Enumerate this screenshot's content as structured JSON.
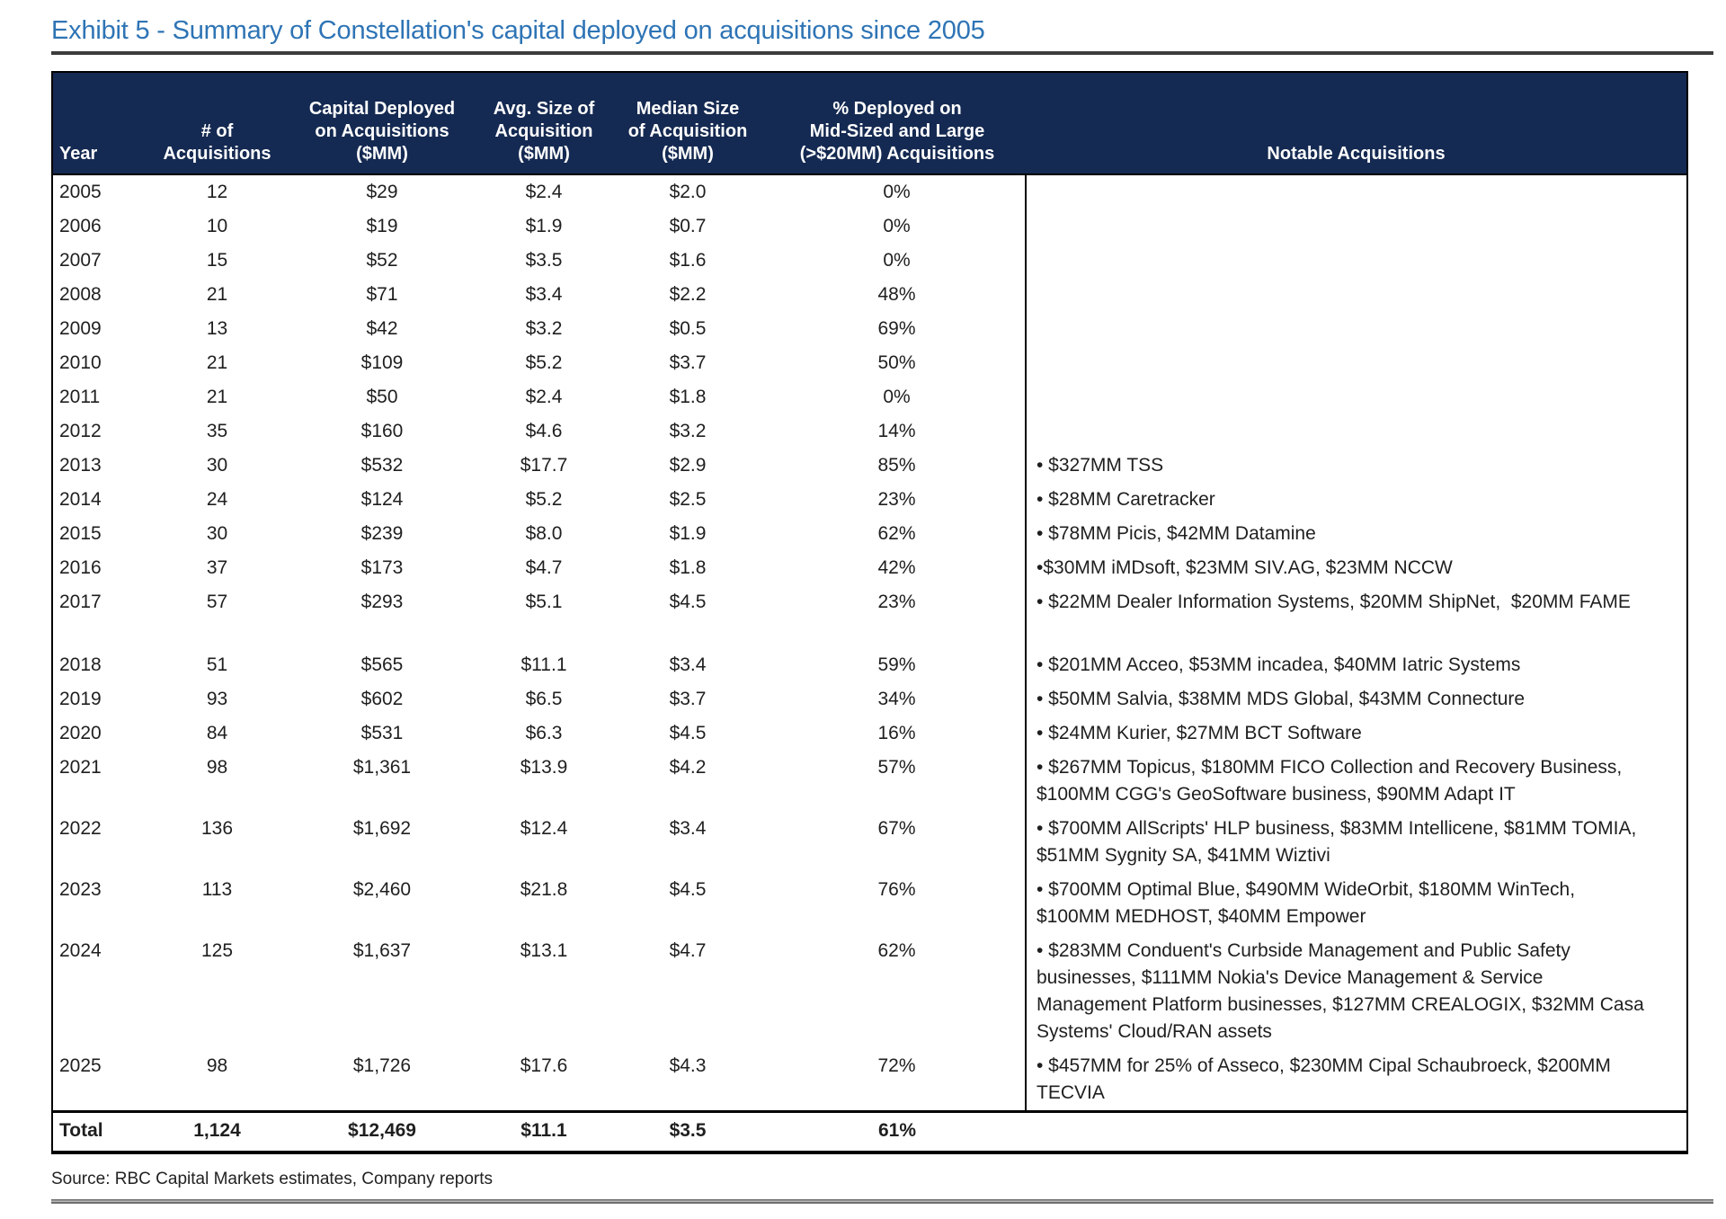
{
  "title": "Exhibit 5 - Summary of Constellation's capital deployed on acquisitions since 2005",
  "source": "Source: RBC Capital Markets estimates, Company reports",
  "colors": {
    "header_bg": "#152a52",
    "title_blue": "#2E74B5"
  },
  "table": {
    "columns": [
      "Year",
      "# of\nAcquisitions",
      "Capital Deployed\non Acquisitions\n($MM)",
      "Avg. Size of\nAcquisition\n($MM)",
      "Median Size\nof Acquisition\n($MM)",
      "% Deployed on\nMid-Sized and Large\n(>$20MM) Acquisitions",
      "Notable Acquisitions"
    ],
    "rows": [
      {
        "year": "2005",
        "num": "12",
        "capital": "$29",
        "avg": "$2.4",
        "median": "$2.0",
        "pct": "0%",
        "notable": ""
      },
      {
        "year": "2006",
        "num": "10",
        "capital": "$19",
        "avg": "$1.9",
        "median": "$0.7",
        "pct": "0%",
        "notable": ""
      },
      {
        "year": "2007",
        "num": "15",
        "capital": "$52",
        "avg": "$3.5",
        "median": "$1.6",
        "pct": "0%",
        "notable": ""
      },
      {
        "year": "2008",
        "num": "21",
        "capital": "$71",
        "avg": "$3.4",
        "median": "$2.2",
        "pct": "48%",
        "notable": ""
      },
      {
        "year": "2009",
        "num": "13",
        "capital": "$42",
        "avg": "$3.2",
        "median": "$0.5",
        "pct": "69%",
        "notable": ""
      },
      {
        "year": "2010",
        "num": "21",
        "capital": "$109",
        "avg": "$5.2",
        "median": "$3.7",
        "pct": "50%",
        "notable": ""
      },
      {
        "year": "2011",
        "num": "21",
        "capital": "$50",
        "avg": "$2.4",
        "median": "$1.8",
        "pct": "0%",
        "notable": ""
      },
      {
        "year": "2012",
        "num": "35",
        "capital": "$160",
        "avg": "$4.6",
        "median": "$3.2",
        "pct": "14%",
        "notable": ""
      },
      {
        "year": "2013",
        "num": "30",
        "capital": "$532",
        "avg": "$17.7",
        "median": "$2.9",
        "pct": "85%",
        "notable": "• $327MM TSS"
      },
      {
        "year": "2014",
        "num": "24",
        "capital": "$124",
        "avg": "$5.2",
        "median": "$2.5",
        "pct": "23%",
        "notable": "• $28MM Caretracker"
      },
      {
        "year": "2015",
        "num": "30",
        "capital": "$239",
        "avg": "$8.0",
        "median": "$1.9",
        "pct": "62%",
        "notable": "• $78MM Picis, $42MM Datamine"
      },
      {
        "year": "2016",
        "num": "37",
        "capital": "$173",
        "avg": "$4.7",
        "median": "$1.8",
        "pct": "42%",
        "notable": "•$30MM iMDsoft, $23MM SIV.AG, $23MM NCCW"
      },
      {
        "year": "2017",
        "num": "57",
        "capital": "$293",
        "avg": "$5.1",
        "median": "$4.5",
        "pct": "23%",
        "notable": "• $22MM Dealer Information Systems, $20MM ShipNet,  $20MM FAME",
        "spacer": true
      },
      {
        "year": "2018",
        "num": "51",
        "capital": "$565",
        "avg": "$11.1",
        "median": "$3.4",
        "pct": "59%",
        "notable": "• $201MM Acceo, $53MM incadea, $40MM Iatric Systems"
      },
      {
        "year": "2019",
        "num": "93",
        "capital": "$602",
        "avg": "$6.5",
        "median": "$3.7",
        "pct": "34%",
        "notable": "• $50MM Salvia, $38MM MDS Global, $43MM Connecture"
      },
      {
        "year": "2020",
        "num": "84",
        "capital": "$531",
        "avg": "$6.3",
        "median": "$4.5",
        "pct": "16%",
        "notable": "• $24MM Kurier, $27MM BCT Software"
      },
      {
        "year": "2021",
        "num": "98",
        "capital": "$1,361",
        "avg": "$13.9",
        "median": "$4.2",
        "pct": "57%",
        "notable": "• $267MM Topicus, $180MM FICO Collection and Recovery Business,\n$100MM CGG's GeoSoftware business, $90MM Adapt IT"
      },
      {
        "year": "2022",
        "num": "136",
        "capital": "$1,692",
        "avg": "$12.4",
        "median": "$3.4",
        "pct": "67%",
        "notable": "• $700MM AllScripts' HLP business, $83MM Intellicene, $81MM TOMIA,\n$51MM Sygnity SA, $41MM Wiztivi"
      },
      {
        "year": "2023",
        "num": "113",
        "capital": "$2,460",
        "avg": "$21.8",
        "median": "$4.5",
        "pct": "76%",
        "notable": "• $700MM Optimal Blue, $490MM WideOrbit, $180MM WinTech,\n$100MM MEDHOST, $40MM Empower"
      },
      {
        "year": "2024",
        "num": "125",
        "capital": "$1,637",
        "avg": "$13.1",
        "median": "$4.7",
        "pct": "62%",
        "notable": "• $283MM Conduent's Curbside Management and Public Safety\nbusinesses, $111MM Nokia's Device Management & Service\nManagement Platform businesses, $127MM CREALOGIX, $32MM Casa\nSystems' Cloud/RAN assets"
      },
      {
        "year": "2025",
        "num": "98",
        "capital": "$1,726",
        "avg": "$17.6",
        "median": "$4.3",
        "pct": "72%",
        "notable": "• $457MM for 25% of Asseco, $230MM Cipal Schaubroeck, $200MM\nTECVIA"
      }
    ],
    "total": {
      "year": "Total",
      "num": "1,124",
      "capital": "$12,469",
      "avg": "$11.1",
      "median": "$3.5",
      "pct": "61%",
      "notable": ""
    }
  }
}
